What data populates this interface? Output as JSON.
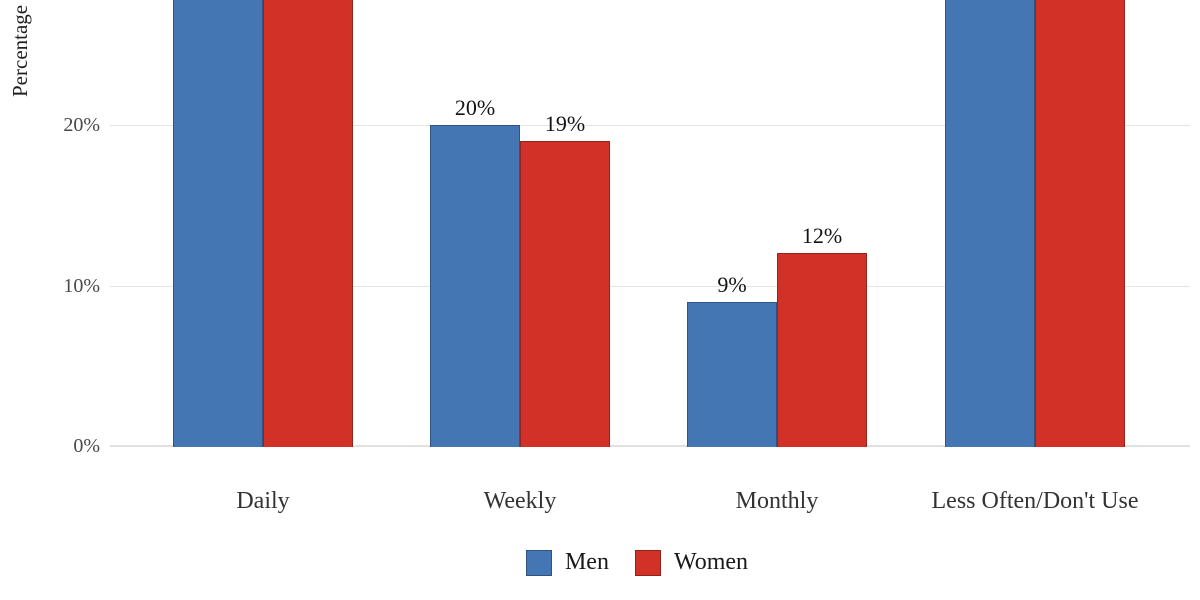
{
  "chart_data": {
    "type": "bar",
    "title": "",
    "ylabel": "Percentage",
    "categories": [
      "Daily",
      "Weekly",
      "Monthly",
      "Less Often/Don't Use"
    ],
    "series": [
      {
        "name": "Men",
        "color": "#4576b4",
        "values": [
          null,
          20,
          9,
          null
        ]
      },
      {
        "name": "Women",
        "color": "#d23127",
        "values": [
          null,
          19,
          12,
          null
        ]
      }
    ],
    "clipped_top": [
      true,
      false,
      false,
      true
    ],
    "value_label_format": "{v}%",
    "yticks": [
      {
        "value": 0,
        "label": "0%"
      },
      {
        "value": 10,
        "label": "10%"
      },
      {
        "value": 20,
        "label": "20%"
      }
    ],
    "ylim_visible": [
      0,
      27.8
    ],
    "grid": true,
    "legend_position": "bottom",
    "legend": [
      {
        "label": "Men",
        "color": "#4576b4"
      },
      {
        "label": "Women",
        "color": "#d23127"
      }
    ]
  }
}
